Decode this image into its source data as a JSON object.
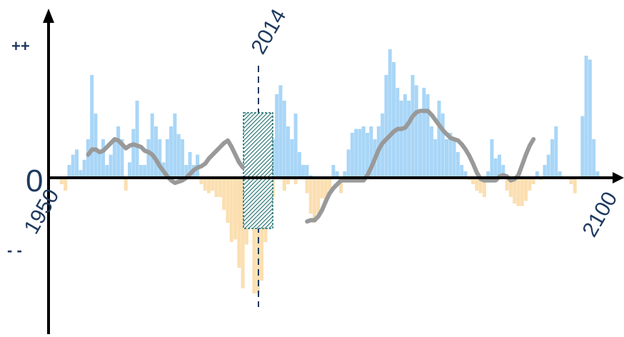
{
  "chart_data": {
    "type": "bar",
    "x_start_label": "1950",
    "x_end_label": "2100",
    "y_zero_label": "0",
    "y_pos_label": "++",
    "y_neg_label": "- -",
    "marker_label": "2014",
    "colors": {
      "positive": "#a9d6f7",
      "negative": "#fbdfb1",
      "smooth": "#999999",
      "axis": "#000000",
      "marker": "#1f3a5f",
      "hatch": "#1e6e6e"
    },
    "ylim": [
      -1.2,
      1.2
    ],
    "segment1": {
      "x_start": 1950,
      "values": [
        0.0,
        0.0,
        0.0,
        -0.05,
        -0.1,
        0.1,
        0.18,
        0.22,
        0.06,
        0.14,
        0.3,
        0.8,
        0.5,
        0.2,
        0.3,
        0.1,
        0.18,
        0.3,
        0.4,
        0.3,
        -0.1,
        0.12,
        0.38,
        0.6,
        0.1,
        0.1,
        0.3,
        0.5,
        0.4,
        0.3,
        0.12,
        0.3,
        0.4,
        0.5,
        0.34,
        0.3,
        0.1,
        0.2,
        0.1,
        0.18,
        -0.05,
        -0.1,
        -0.12,
        -0.1,
        -0.15,
        -0.15,
        -0.25,
        -0.35,
        -0.5,
        -0.48,
        -0.7,
        -0.86,
        -0.5,
        -0.2,
        -0.1,
        0.07,
        0.2,
        0.28,
        0.4,
        0.3,
        0.65,
        0.72,
        0.6,
        0.4,
        0.3,
        0.5,
        0.2,
        0.1,
        0.1,
        0.02,
        -0.02,
        0.0,
        0.0,
        0.0,
        0.0
      ],
      "smooth": [
        0.18,
        0.22,
        0.22,
        0.2,
        0.21,
        0.24,
        0.27,
        0.3,
        0.29,
        0.26,
        0.23,
        0.25,
        0.26,
        0.25,
        0.24,
        0.21,
        0.2,
        0.18,
        0.14,
        0.09,
        0.05,
        0.01,
        -0.02,
        -0.04,
        -0.03,
        -0.02,
        0.0,
        0.03,
        0.06,
        0.08,
        0.09,
        0.11,
        0.15,
        0.18,
        0.21,
        0.24,
        0.27,
        0.29,
        0.24,
        0.18,
        0.12,
        0.08
      ],
      "smooth_x_start": 1972
    },
    "gap": {
      "x_from": 1989,
      "x_to": 2000
    },
    "segment2": {
      "x_start": 2000,
      "values": [
        -0.4,
        -0.68,
        -0.52,
        -0.1,
        -0.9,
        -0.9,
        -0.8,
        -0.5,
        0.18,
        -0.15,
        0.35,
        0.3,
        -0.1,
        -0.05,
        0.05,
        -0.05,
        0.1,
        0.1,
        -0.12,
        -0.28,
        -0.35,
        -0.28,
        -0.16,
        -0.2,
        -0.1,
        0.1,
        0.05,
        -0.12,
        0.05,
        0.22,
        0.35,
        0.38,
        0.38,
        0.4,
        0.35,
        0.4,
        0.3,
        0.4,
        0.5,
        0.8,
        1.0,
        0.9,
        0.7,
        0.6,
        0.65,
        0.6,
        0.8,
        0.72,
        0.5,
        0.7,
        0.65,
        0.4,
        0.3,
        0.6,
        0.5,
        0.3,
        0.35,
        0.3,
        0.2,
        0.1,
        0.05,
        -0.02,
        -0.05,
        -0.1,
        -0.12,
        -0.15,
        0.05,
        0.3,
        0.15,
        0.18,
        0.1,
        -0.1,
        -0.15,
        -0.2,
        -0.22,
        -0.22,
        -0.18,
        -0.1,
        -0.05,
        0.05,
        -0.02,
        0.1,
        0.18,
        0.3,
        0.4,
        0.05,
        0.0,
        0.0,
        -0.05,
        -0.12,
        0.0,
        0.48,
        0.95,
        0.92,
        0.3,
        0.05,
        0.0
      ]
    },
    "smooth2": {
      "x_start": 2018,
      "values": [
        -0.34,
        -0.33,
        -0.33,
        -0.3,
        -0.25,
        -0.18,
        -0.12,
        -0.08,
        -0.05,
        -0.02,
        -0.02,
        -0.02,
        -0.02,
        -0.02,
        -0.02,
        -0.02,
        0.02,
        0.08,
        0.15,
        0.22,
        0.27,
        0.3,
        0.33,
        0.36,
        0.38,
        0.38,
        0.39,
        0.43,
        0.48,
        0.51,
        0.52,
        0.52,
        0.52,
        0.49,
        0.45,
        0.41,
        0.37,
        0.34,
        0.31,
        0.3,
        0.29,
        0.26,
        0.22,
        0.17,
        0.11,
        0.04,
        -0.01,
        -0.02,
        -0.02,
        -0.02,
        -0.02,
        0.01,
        0.02,
        0.01,
        -0.02,
        -0.01,
        0.02,
        0.1,
        0.18,
        0.25,
        0.3
      ]
    },
    "x_per_year_base": 1950,
    "last_year": 2086
  }
}
